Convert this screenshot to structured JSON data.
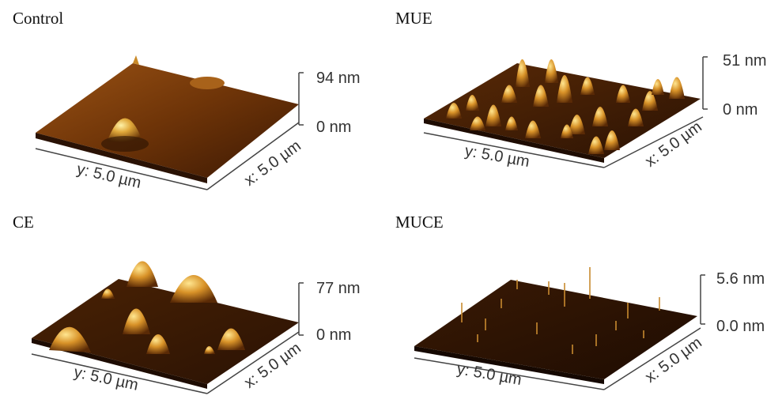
{
  "panels": [
    {
      "title": "Control",
      "z_max": "94 nm",
      "z_min": "0 nm",
      "y_axis": "y: 5.0 µm",
      "x_axis": "x: 5.0 µm"
    },
    {
      "title": "MUE",
      "z_max": "51 nm",
      "z_min": "0 nm",
      "y_axis": "y: 5.0 µm",
      "x_axis": "x: 5.0 µm"
    },
    {
      "title": "CE",
      "z_max": "77 nm",
      "z_min": "0 nm",
      "y_axis": "y: 5.0 µm",
      "x_axis": "x: 5.0 µm"
    },
    {
      "title": "MUCE",
      "z_max": "5.6 nm",
      "z_min": "0.0 nm",
      "y_axis": "y: 5.0 µm",
      "x_axis": "x: 5.0 µm"
    }
  ],
  "colors": {
    "dark": "#2a1204",
    "mid": "#8a4a12",
    "light": "#f2d070",
    "axis": "#444444"
  }
}
